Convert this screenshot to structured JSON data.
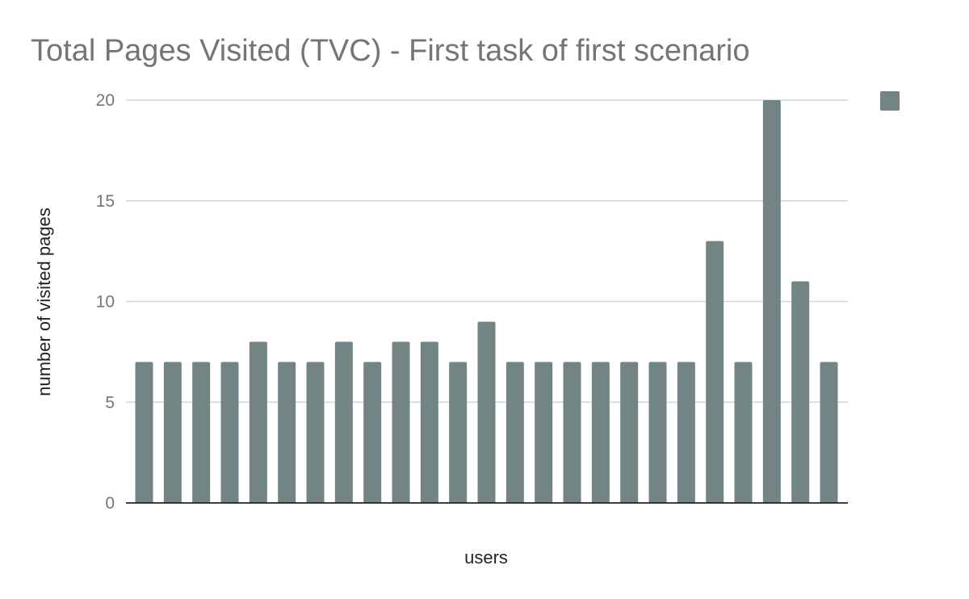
{
  "chart_data": {
    "type": "bar",
    "title": "Total Pages Visited (TVC) - First task of first scenario",
    "xlabel": "users",
    "ylabel": "number of visited pages",
    "ylim": [
      0,
      20
    ],
    "yticks": [
      "0",
      "5",
      "10",
      "15",
      "20"
    ],
    "grid": true,
    "legend": "top-right",
    "bar_color": "#728484",
    "values": [
      7,
      7,
      7,
      7,
      8,
      7,
      7,
      8,
      7,
      8,
      8,
      7,
      9,
      7,
      7,
      7,
      7,
      7,
      7,
      7,
      13,
      7,
      20,
      11,
      7
    ]
  }
}
